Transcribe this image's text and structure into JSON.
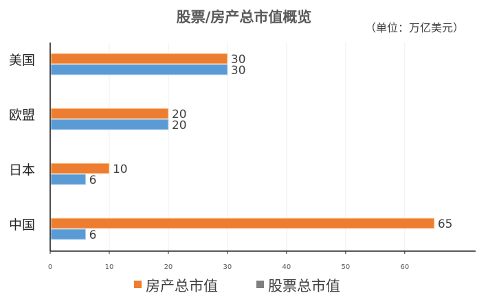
{
  "chart_data": {
    "type": "bar",
    "orientation": "horizontal",
    "title": "股票/房产总市值概览",
    "unit_note": "（单位：万亿美元）",
    "categories": [
      "美国",
      "欧盟",
      "日本",
      "中国"
    ],
    "series": [
      {
        "name": "房产总市值",
        "values": [
          30,
          20,
          10,
          65
        ],
        "color": "#ED7D31"
      },
      {
        "name": "股票总市值",
        "values": [
          30,
          20,
          6,
          6
        ],
        "color": "#5B9BD5"
      }
    ],
    "xlim": [
      0,
      72
    ],
    "xticks": [
      0,
      10,
      20,
      30,
      40,
      50,
      60
    ],
    "grid": true,
    "legend_position": "bottom"
  }
}
